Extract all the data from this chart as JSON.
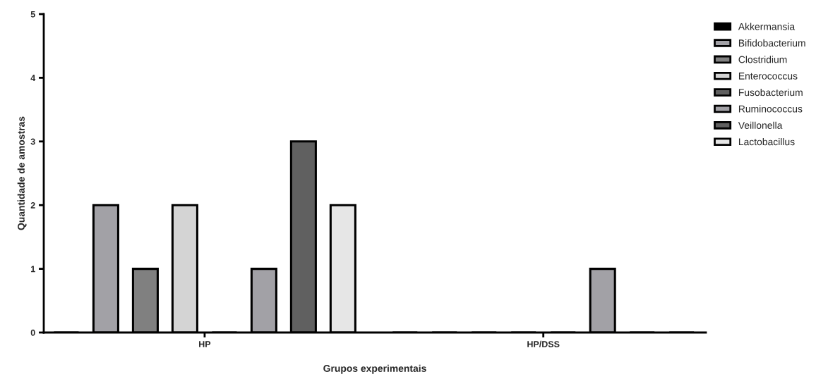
{
  "chart_data": {
    "type": "bar",
    "xlabel": "Grupos experimentais",
    "ylabel": "Quantidade de amostras",
    "categories": [
      "HP",
      "HP/DSS"
    ],
    "series": [
      {
        "name": "Akkermansia",
        "color": "#000000",
        "values": [
          0,
          0
        ]
      },
      {
        "name": "Bifidobacterium",
        "color": "#a2a1a6",
        "values": [
          2,
          0
        ]
      },
      {
        "name": "Clostridium",
        "color": "#808080",
        "values": [
          1,
          0
        ]
      },
      {
        "name": "Enterococcus",
        "color": "#d4d4d4",
        "values": [
          2,
          0
        ]
      },
      {
        "name": "Fusobacterium",
        "color": "#606060",
        "values": [
          0,
          0
        ]
      },
      {
        "name": "Ruminococcus",
        "color": "#a2a1a6",
        "values": [
          1,
          1
        ]
      },
      {
        "name": "Veillonella",
        "color": "#606060",
        "values": [
          3,
          0
        ]
      },
      {
        "name": "Lactobacillus",
        "color": "#e6e6e6",
        "values": [
          2,
          0
        ]
      }
    ],
    "ylim": [
      0,
      5
    ],
    "yticks": [
      0,
      1,
      2,
      3,
      4,
      5
    ],
    "grid": false,
    "legend": "top right"
  }
}
